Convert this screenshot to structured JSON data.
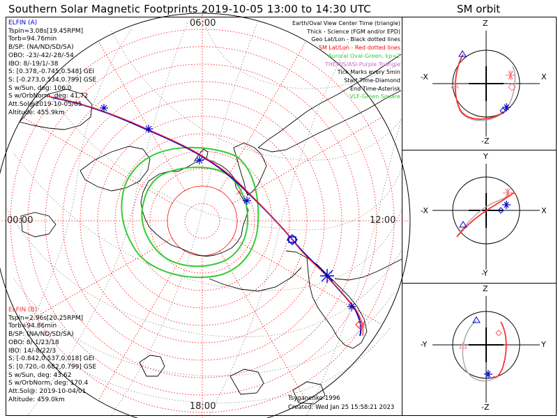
{
  "title": "Southern Solar Magnetic Footprints 2019-10-05 13:00 to 14:30 UTC",
  "orbit_title": "SM orbit",
  "clock_labels": {
    "top": "06:00",
    "left": "00:00",
    "right": "12:00",
    "bottom": "18:00"
  },
  "elfin_a": {
    "name": "ELFIN (A)",
    "color": "#0000cc",
    "lines": [
      "Tspin=3.08s[19.45RPM]",
      "Torb=94.76min",
      "B/SP: (NA/ND/SD/SA)",
      "OBO: -23/-42/-28/-54",
      "IBO: 8/-19/1/-38",
      "S: [0.378,-0.745,0.548] GEI",
      "S: [-0.273,0.534,0.799] GSE",
      "S w/Sun, deg: 106.0",
      "S w/OrbNorm, deg: 41.72",
      "Att.Sol@2019-10-05/05",
      "Altitude: 455.9km"
    ]
  },
  "elfin_b": {
    "name": "ELFIN (B)",
    "color": "#ff3030",
    "lines": [
      "Tspin=2.96s[20.25RPM]",
      "Torb=94.86min",
      "B/SP: (NA/ND/SD/SA)",
      "OBO: 8/-1/23/18",
      "IBO: 14/-8/22/3",
      "S: [-0.842,0.537,0.018] GEI",
      "S: [0.720,-0.682,0.799] GSE",
      "S w/Sun, deg: 43.62",
      "S w/OrbNorm, deg: 170.4",
      "Att.Sol@: 2019-10-04/01",
      "Altitude: 459.0km"
    ]
  },
  "legend": [
    {
      "text": "Earth/Oval View Center Time (triangle)",
      "color": "#000000"
    },
    {
      "text": "Thick - Science (FGM and/or EPD)",
      "color": "#000000"
    },
    {
      "text": "Geo Lat/Lon - Black dotted lines",
      "color": "#000000"
    },
    {
      "text": "SM Lat/Lon - Red dotted lines",
      "color": "#ff0000"
    },
    {
      "text": "Auroral Oval-Green, kp=2",
      "color": "#33cc33"
    },
    {
      "text": "THEMIS/ASI-Purple Triangle",
      "color": "#cc66cc"
    },
    {
      "text": "Tick Marks every 5min",
      "color": "#000000"
    },
    {
      "text": "Start Time-Diamond",
      "color": "#000000"
    },
    {
      "text": "End Time-Asterisk",
      "color": "#000000"
    },
    {
      "text": "VLF-Green Square",
      "color": "#33cc33"
    }
  ],
  "footer": {
    "credit": "Tsyganenko-1996",
    "created": "Created: Wed Jan 25 15:58:21 2023"
  },
  "sm_panels": [
    {
      "name": "xz",
      "top": "Z",
      "bottom": "-Z",
      "left": "-X",
      "right": "X"
    },
    {
      "name": "xy",
      "top": "Y",
      "bottom": "-Y",
      "left": "-X",
      "right": "X"
    },
    {
      "name": "yz",
      "top": "Z",
      "bottom": "-Z",
      "left": "-Y",
      "right": "Y"
    }
  ],
  "colors": {
    "sm_grid": "#ff0000",
    "auroral_oval": "#33cc33",
    "elfin_a": "#0000cc",
    "elfin_b": "#ff3030",
    "coast": "#000000",
    "geo_grid": "#333333"
  }
}
